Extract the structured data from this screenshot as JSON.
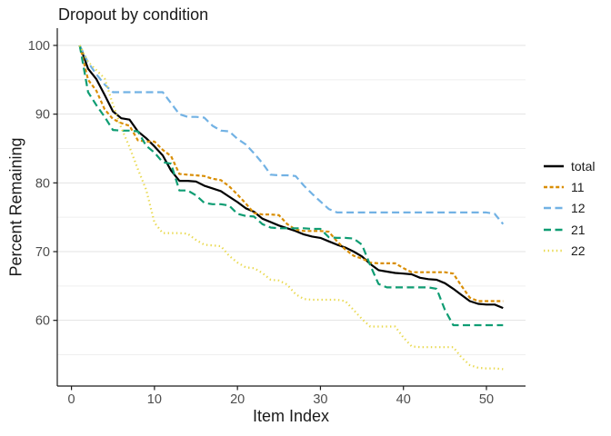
{
  "chart_data": {
    "type": "line",
    "title": "Dropout by condition",
    "xlabel": "Item Index",
    "ylabel": "Percent Remaining",
    "x_ticks": [
      0,
      10,
      20,
      30,
      40,
      50
    ],
    "y_ticks": [
      60,
      70,
      80,
      90,
      100
    ],
    "y_minor_gridlines": [
      55,
      65,
      75,
      85,
      95
    ],
    "xlim": [
      -1.7,
      54.7
    ],
    "ylim": [
      50.5,
      102.5
    ],
    "grid": "horizontal gridlines only, light gray, major and minor",
    "legend_position": "right",
    "x": [
      1,
      2,
      3,
      4,
      5,
      6,
      7,
      8,
      9,
      10,
      11,
      12,
      13,
      14,
      15,
      16,
      17,
      18,
      19,
      20,
      21,
      22,
      23,
      24,
      25,
      26,
      27,
      28,
      29,
      30,
      31,
      32,
      33,
      34,
      35,
      36,
      37,
      38,
      39,
      40,
      41,
      42,
      43,
      44,
      45,
      46,
      47,
      48,
      49,
      50,
      51,
      52
    ],
    "series": [
      {
        "name": "total",
        "color": "#000000",
        "linetype": "solid",
        "values": [
          100,
          96.6,
          95.1,
          92.8,
          90.4,
          89.4,
          89.2,
          87.5,
          86.5,
          85.3,
          84.0,
          81.8,
          80.3,
          80.3,
          80.2,
          79.6,
          79.2,
          78.8,
          78.0,
          77.2,
          76.3,
          75.8,
          74.8,
          74.3,
          73.8,
          73.4,
          73.0,
          72.5,
          72.2,
          72.0,
          71.5,
          71.0,
          70.6,
          70.0,
          69.3,
          68.2,
          67.3,
          67.1,
          66.9,
          66.8,
          66.7,
          66.2,
          66.0,
          65.9,
          65.4,
          64.6,
          63.7,
          62.8,
          62.4,
          62.3,
          62.3,
          61.8
        ]
      },
      {
        "name": "11",
        "color": "#D98E04",
        "linetype": "dashed",
        "values": [
          100,
          95.0,
          93.4,
          90.7,
          89.3,
          88.7,
          88.3,
          86.2,
          86.0,
          86.0,
          84.8,
          83.9,
          81.3,
          81.2,
          81.1,
          81.0,
          80.6,
          80.4,
          79.5,
          78.3,
          77.0,
          75.6,
          75.4,
          75.4,
          75.3,
          74.0,
          73.2,
          73.0,
          73.0,
          73.0,
          72.9,
          71.5,
          70.3,
          69.4,
          69.0,
          68.4,
          68.3,
          68.3,
          68.3,
          67.6,
          67.0,
          67.0,
          67.0,
          67.0,
          67.0,
          66.8,
          65.0,
          63.3,
          62.8,
          62.8,
          62.8,
          62.8
        ]
      },
      {
        "name": "12",
        "color": "#72B2E4",
        "linetype": "longdash",
        "values": [
          100,
          97.5,
          95.8,
          94.3,
          93.2,
          93.2,
          93.2,
          93.2,
          93.2,
          93.2,
          93.2,
          91.6,
          90.0,
          89.6,
          89.6,
          89.5,
          88.3,
          87.6,
          87.5,
          86.4,
          85.6,
          84.3,
          82.9,
          81.2,
          81.1,
          81.1,
          81.0,
          79.6,
          78.4,
          77.3,
          76.2,
          75.7,
          75.7,
          75.7,
          75.7,
          75.7,
          75.7,
          75.7,
          75.7,
          75.7,
          75.7,
          75.7,
          75.7,
          75.7,
          75.7,
          75.7,
          75.7,
          75.7,
          75.7,
          75.7,
          75.5,
          74.0
        ]
      },
      {
        "name": "21",
        "color": "#0F9D73",
        "linetype": "longdash",
        "values": [
          100,
          93.2,
          91.3,
          89.6,
          87.7,
          87.6,
          87.6,
          87.5,
          85.4,
          84.4,
          83.0,
          82.8,
          78.9,
          78.9,
          78.2,
          77.1,
          76.9,
          76.9,
          76.7,
          75.5,
          75.2,
          75.1,
          74.0,
          73.5,
          73.4,
          73.4,
          73.4,
          73.4,
          73.3,
          73.3,
          72.1,
          72.0,
          72.0,
          71.9,
          71.0,
          68.0,
          65.3,
          64.8,
          64.8,
          64.8,
          64.8,
          64.8,
          64.8,
          64.6,
          61.5,
          59.3,
          59.3,
          59.3,
          59.3,
          59.3,
          59.3,
          59.3
        ]
      },
      {
        "name": "22",
        "color": "#E9D94F",
        "linetype": "dotted",
        "values": [
          100,
          97.6,
          96.4,
          95.2,
          91.4,
          88.0,
          85.2,
          82.0,
          79.0,
          74.2,
          72.7,
          72.7,
          72.7,
          72.6,
          71.7,
          71.0,
          70.9,
          70.8,
          69.4,
          68.4,
          67.7,
          67.6,
          66.9,
          65.9,
          65.8,
          65.2,
          63.8,
          63.1,
          63.0,
          63.0,
          63.0,
          63.0,
          62.8,
          61.5,
          60.2,
          59.1,
          59.1,
          59.1,
          59.1,
          57.5,
          56.2,
          56.1,
          56.1,
          56.1,
          56.1,
          56.1,
          54.6,
          53.5,
          53.1,
          53.0,
          53.0,
          52.9
        ]
      }
    ]
  },
  "colors": {
    "axis_line": "#1a1a1a",
    "tick_label": "#4D4D4D",
    "grid_major": "#E3E3E3",
    "grid_minor": "#EFEFEF",
    "background": "#FFFFFF"
  }
}
